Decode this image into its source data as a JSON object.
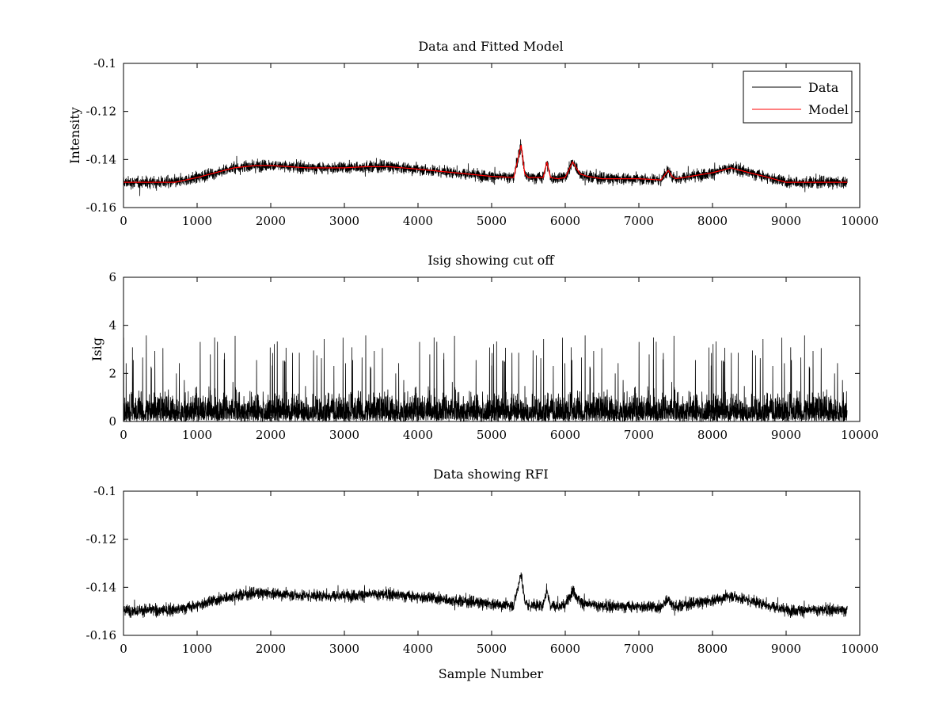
{
  "chart_data": [
    {
      "type": "line",
      "title": "Data and Fitted Model",
      "xlabel": "",
      "ylabel": "Intensity",
      "xlim": [
        0,
        10000
      ],
      "ylim": [
        -0.16,
        -0.1
      ],
      "xticks": [
        "0",
        "1000",
        "2000",
        "3000",
        "4000",
        "5000",
        "6000",
        "7000",
        "8000",
        "9000",
        "10000"
      ],
      "yticks": [
        "-0.16",
        "-0.14",
        "-0.12",
        "-0.1"
      ],
      "legend": {
        "position": "top-right",
        "entries": [
          "Data",
          "Model"
        ]
      },
      "series": [
        {
          "name": "Data",
          "color": "#000000",
          "style": "noisy",
          "noise_amplitude": 0.004,
          "x_range": [
            0,
            9830
          ],
          "baseline_x": [
            0,
            700,
            1000,
            1500,
            1800,
            2000,
            2500,
            3000,
            3300,
            3600,
            4000,
            4500,
            5000,
            5300,
            5400,
            5450,
            5500,
            5700,
            5750,
            5800,
            5900,
            6000,
            6100,
            6200,
            6300,
            6500,
            7000,
            7300,
            7400,
            7450,
            7500,
            7600,
            8000,
            8250,
            8500,
            8700,
            9000,
            9830
          ],
          "baseline_y": [
            -0.1495,
            -0.1495,
            -0.1475,
            -0.1435,
            -0.1425,
            -0.1425,
            -0.1435,
            -0.1435,
            -0.143,
            -0.143,
            -0.144,
            -0.1455,
            -0.147,
            -0.1475,
            -0.134,
            -0.146,
            -0.1475,
            -0.1475,
            -0.141,
            -0.1475,
            -0.148,
            -0.1475,
            -0.141,
            -0.146,
            -0.147,
            -0.148,
            -0.148,
            -0.1485,
            -0.1445,
            -0.147,
            -0.148,
            -0.1475,
            -0.1455,
            -0.1435,
            -0.1455,
            -0.147,
            -0.1495,
            -0.1495
          ]
        },
        {
          "name": "Model",
          "color": "#ff0000",
          "style": "smooth",
          "x": [
            0,
            700,
            1000,
            1500,
            1800,
            2000,
            2500,
            3000,
            3300,
            3600,
            4000,
            4500,
            5000,
            5300,
            5400,
            5450,
            5500,
            5700,
            5750,
            5800,
            5900,
            6000,
            6100,
            6200,
            6300,
            6500,
            7000,
            7300,
            7400,
            7450,
            7500,
            7600,
            8000,
            8250,
            8500,
            8700,
            9000,
            9830
          ],
          "y": [
            -0.1495,
            -0.1495,
            -0.1475,
            -0.1435,
            -0.1425,
            -0.1425,
            -0.1435,
            -0.1435,
            -0.143,
            -0.143,
            -0.144,
            -0.1455,
            -0.147,
            -0.1475,
            -0.134,
            -0.146,
            -0.1475,
            -0.1475,
            -0.141,
            -0.1475,
            -0.148,
            -0.1475,
            -0.141,
            -0.146,
            -0.147,
            -0.148,
            -0.148,
            -0.1485,
            -0.1445,
            -0.147,
            -0.148,
            -0.1475,
            -0.1455,
            -0.1435,
            -0.1455,
            -0.147,
            -0.1495,
            -0.1495
          ]
        }
      ]
    },
    {
      "type": "line",
      "title": "Isig showing cut off",
      "xlabel": "",
      "ylabel": "Isig",
      "xlim": [
        0,
        10000
      ],
      "ylim": [
        0,
        6
      ],
      "xticks": [
        "0",
        "1000",
        "2000",
        "3000",
        "4000",
        "5000",
        "6000",
        "7000",
        "8000",
        "9000",
        "10000"
      ],
      "yticks": [
        "0",
        "2",
        "4",
        "6"
      ],
      "series": [
        {
          "color": "#000000",
          "style": "abs-noise",
          "x_range": [
            0,
            9830
          ],
          "typical_max": 3.6,
          "mean": 0.8
        }
      ]
    },
    {
      "type": "line",
      "title": "Data showing RFI",
      "xlabel": "Sample Number",
      "ylabel": "",
      "xlim": [
        0,
        10000
      ],
      "ylim": [
        -0.16,
        -0.1
      ],
      "xticks": [
        "0",
        "1000",
        "2000",
        "3000",
        "4000",
        "5000",
        "6000",
        "7000",
        "8000",
        "9000",
        "10000"
      ],
      "yticks": [
        "-0.16",
        "-0.14",
        "-0.12",
        "-0.1"
      ],
      "series": [
        {
          "color": "#000000",
          "style": "noisy",
          "noise_amplitude": 0.004,
          "x_range": [
            0,
            9830
          ],
          "baseline_x": [
            0,
            700,
            1000,
            1500,
            1800,
            2000,
            2500,
            3000,
            3300,
            3600,
            4000,
            4500,
            5000,
            5300,
            5400,
            5450,
            5500,
            5700,
            5750,
            5800,
            5900,
            6000,
            6100,
            6200,
            6300,
            6500,
            7000,
            7300,
            7400,
            7450,
            7500,
            7600,
            8000,
            8250,
            8500,
            8700,
            9000,
            9830
          ],
          "baseline_y": [
            -0.1495,
            -0.1495,
            -0.1475,
            -0.1435,
            -0.1425,
            -0.1425,
            -0.1435,
            -0.1435,
            -0.143,
            -0.143,
            -0.144,
            -0.1455,
            -0.147,
            -0.1475,
            -0.134,
            -0.146,
            -0.1475,
            -0.1475,
            -0.141,
            -0.1475,
            -0.148,
            -0.1475,
            -0.141,
            -0.146,
            -0.147,
            -0.148,
            -0.148,
            -0.1485,
            -0.1445,
            -0.147,
            -0.148,
            -0.1475,
            -0.1455,
            -0.1435,
            -0.1455,
            -0.147,
            -0.1495,
            -0.1495
          ]
        }
      ]
    }
  ]
}
